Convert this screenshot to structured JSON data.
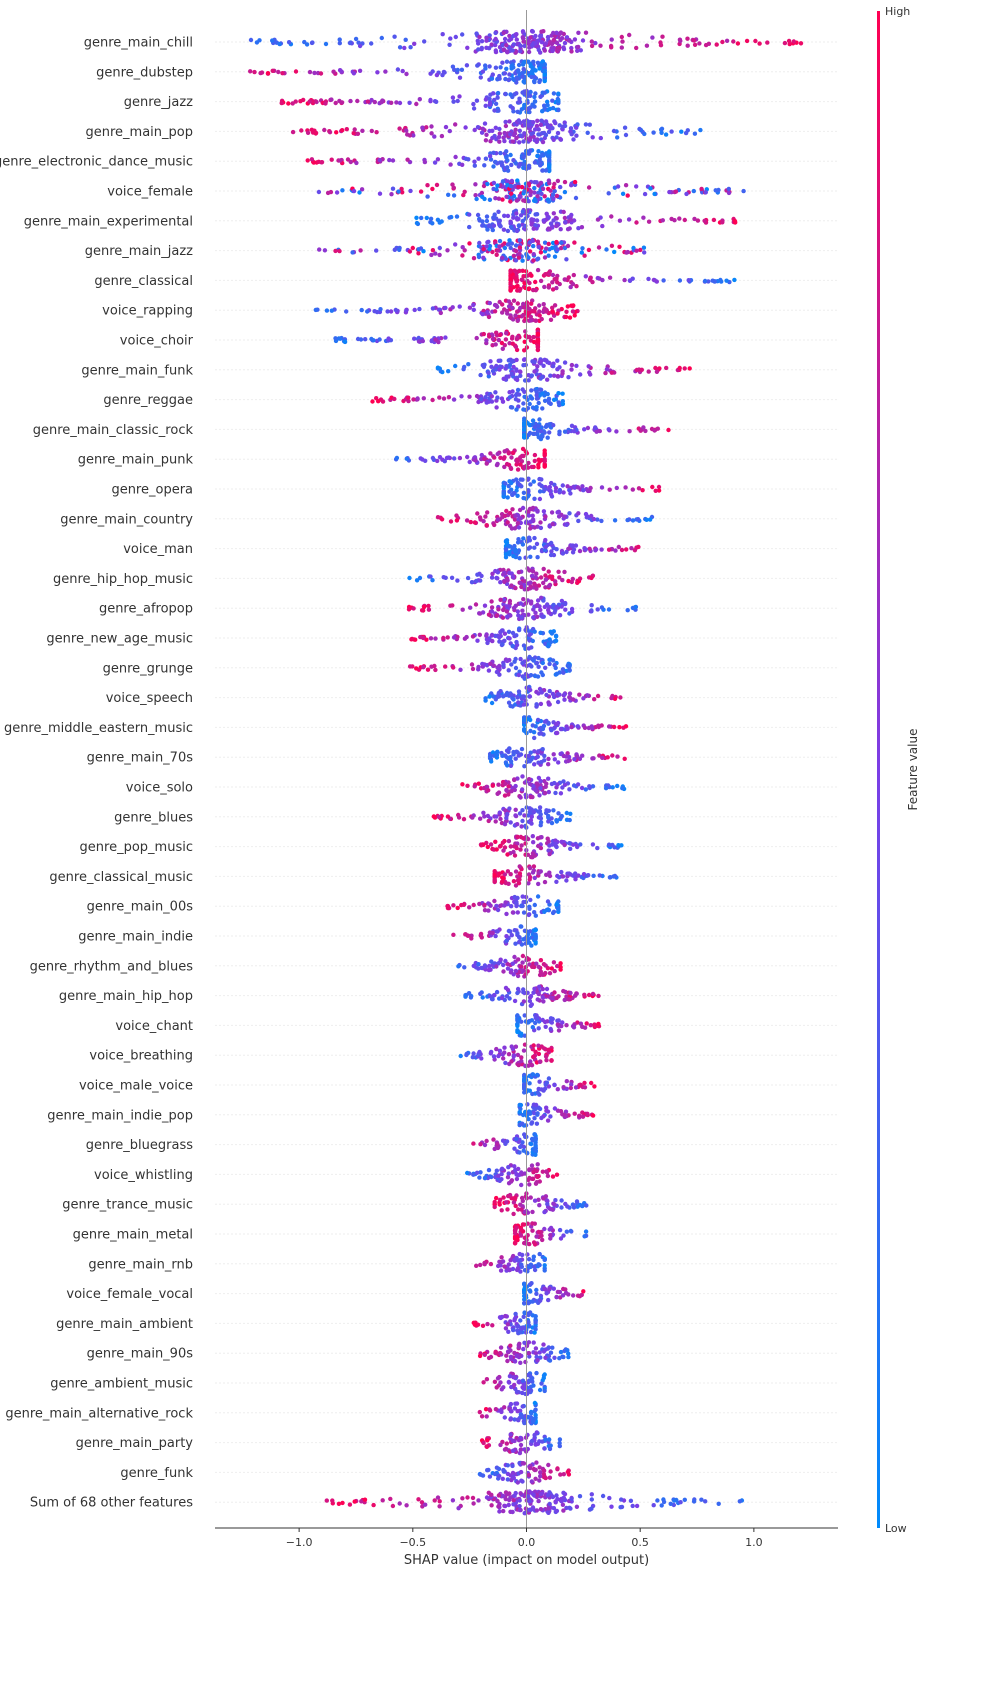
{
  "chart_data": {
    "type": "scatter",
    "subtype": "shap-beeswarm",
    "xlabel": "SHAP value (impact on model output)",
    "xlim": [
      -1.37,
      1.37
    ],
    "xticks": [
      -1.0,
      -0.5,
      0.0,
      0.5,
      1.0
    ],
    "xtick_labels": [
      "−1.0",
      "−0.5",
      "0.0",
      "0.5",
      "1.0"
    ],
    "colorbar": {
      "title": "Feature value",
      "high_label": "High",
      "low_label": "Low",
      "low_color": "#008bfb",
      "high_color": "#ff0052"
    },
    "zero_line": true,
    "grid": false,
    "features": [
      {
        "name": "genre_main_chill",
        "min": -1.25,
        "max": 1.23,
        "high": "right"
      },
      {
        "name": "genre_dubstep",
        "min": -1.25,
        "max": 0.08,
        "high": "left"
      },
      {
        "name": "genre_jazz",
        "min": -1.08,
        "max": 0.14,
        "high": "left"
      },
      {
        "name": "genre_main_pop",
        "min": -1.03,
        "max": 0.78,
        "high": "left"
      },
      {
        "name": "genre_electronic_dance_music",
        "min": -0.99,
        "max": 0.1,
        "high": "left"
      },
      {
        "name": "voice_female",
        "min": -0.93,
        "max": 0.96,
        "high": "mixed"
      },
      {
        "name": "genre_main_experimental",
        "min": -0.49,
        "max": 0.94,
        "high": "right"
      },
      {
        "name": "genre_main_jazz",
        "min": -0.93,
        "max": 0.53,
        "high": "mixed"
      },
      {
        "name": "genre_classical",
        "min": -0.07,
        "max": 0.93,
        "high": "left"
      },
      {
        "name": "voice_rapping",
        "min": -0.93,
        "max": 0.23,
        "high": "right"
      },
      {
        "name": "voice_choir",
        "min": -0.84,
        "max": 0.05,
        "high": "right"
      },
      {
        "name": "genre_main_funk",
        "min": -0.4,
        "max": 0.73,
        "high": "right"
      },
      {
        "name": "genre_reggae",
        "min": -0.68,
        "max": 0.16,
        "high": "left"
      },
      {
        "name": "genre_main_classic_rock",
        "min": -0.01,
        "max": 0.68,
        "high": "right"
      },
      {
        "name": "genre_main_punk",
        "min": -0.61,
        "max": 0.08,
        "high": "right"
      },
      {
        "name": "genre_opera",
        "min": -0.1,
        "max": 0.6,
        "high": "right"
      },
      {
        "name": "genre_main_country",
        "min": -0.4,
        "max": 0.59,
        "high": "left"
      },
      {
        "name": "voice_man",
        "min": -0.09,
        "max": 0.56,
        "high": "right"
      },
      {
        "name": "genre_hip_hop_music",
        "min": -0.53,
        "max": 0.3,
        "high": "right"
      },
      {
        "name": "genre_afropop",
        "min": -0.53,
        "max": 0.49,
        "high": "left"
      },
      {
        "name": "genre_new_age_music",
        "min": -0.52,
        "max": 0.13,
        "high": "left"
      },
      {
        "name": "genre_grunge",
        "min": -0.52,
        "max": 0.19,
        "high": "left"
      },
      {
        "name": "voice_speech",
        "min": -0.18,
        "max": 0.47,
        "high": "right"
      },
      {
        "name": "genre_middle_eastern_music",
        "min": -0.01,
        "max": 0.44,
        "high": "right"
      },
      {
        "name": "genre_main_70s",
        "min": -0.16,
        "max": 0.45,
        "high": "right"
      },
      {
        "name": "voice_solo",
        "min": -0.3,
        "max": 0.43,
        "high": "left"
      },
      {
        "name": "genre_blues",
        "min": -0.41,
        "max": 0.22,
        "high": "left"
      },
      {
        "name": "genre_pop_music",
        "min": -0.2,
        "max": 0.43,
        "high": "left"
      },
      {
        "name": "genre_classical_music",
        "min": -0.14,
        "max": 0.4,
        "high": "left"
      },
      {
        "name": "genre_main_00s",
        "min": -0.36,
        "max": 0.14,
        "high": "left"
      },
      {
        "name": "genre_main_indie",
        "min": -0.33,
        "max": 0.04,
        "high": "left"
      },
      {
        "name": "genre_rhythm_and_blues",
        "min": -0.33,
        "max": 0.15,
        "high": "right"
      },
      {
        "name": "genre_main_hip_hop",
        "min": -0.27,
        "max": 0.33,
        "high": "right"
      },
      {
        "name": "voice_chant",
        "min": -0.04,
        "max": 0.32,
        "high": "right"
      },
      {
        "name": "voice_breathing",
        "min": -0.31,
        "max": 0.11,
        "high": "right"
      },
      {
        "name": "voice_male_voice",
        "min": -0.01,
        "max": 0.3,
        "high": "right"
      },
      {
        "name": "genre_main_indie_pop",
        "min": -0.03,
        "max": 0.3,
        "high": "right"
      },
      {
        "name": "genre_bluegrass",
        "min": -0.27,
        "max": 0.04,
        "high": "left"
      },
      {
        "name": "voice_whistling",
        "min": -0.27,
        "max": 0.15,
        "high": "right"
      },
      {
        "name": "genre_trance_music",
        "min": -0.14,
        "max": 0.28,
        "high": "left"
      },
      {
        "name": "genre_main_metal",
        "min": -0.05,
        "max": 0.27,
        "high": "left"
      },
      {
        "name": "genre_main_rnb",
        "min": -0.25,
        "max": 0.08,
        "high": "left"
      },
      {
        "name": "voice_female_vocal",
        "min": -0.01,
        "max": 0.26,
        "high": "right"
      },
      {
        "name": "genre_main_ambient",
        "min": -0.24,
        "max": 0.04,
        "high": "left"
      },
      {
        "name": "genre_main_90s",
        "min": -0.23,
        "max": 0.22,
        "high": "left"
      },
      {
        "name": "genre_ambient_music",
        "min": -0.21,
        "max": 0.08,
        "high": "left"
      },
      {
        "name": "genre_main_alternative_rock",
        "min": -0.21,
        "max": 0.04,
        "high": "left"
      },
      {
        "name": "genre_main_party",
        "min": -0.2,
        "max": 0.15,
        "high": "left"
      },
      {
        "name": "genre_funk",
        "min": -0.21,
        "max": 0.19,
        "high": "right"
      },
      {
        "name": "Sum of 68 other features",
        "min": -0.9,
        "max": 0.96,
        "high": "left"
      }
    ]
  }
}
